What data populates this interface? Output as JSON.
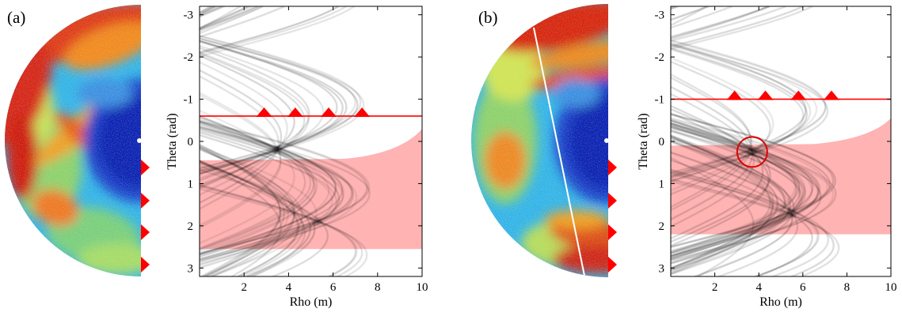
{
  "figure": {
    "panels": [
      {
        "label": "(a)",
        "sonar_image": {
          "colormap": "jet",
          "markers": {
            "count": 4,
            "color": "#ff0000",
            "side": "right"
          },
          "detected_wall_line": false
        },
        "chart_data": {
          "type": "hough-transform",
          "xlabel": "Rho (m)",
          "ylabel": "Theta (rad)",
          "xlim": [
            0,
            10
          ],
          "ylim": [
            -3.2,
            3.2
          ],
          "y_inverted": true,
          "x_ticks": [
            2,
            4,
            6,
            8,
            10
          ],
          "y_ticks": [
            -3,
            -2,
            -1,
            0,
            1,
            2,
            3
          ],
          "horizontal_line": {
            "theta": -0.6,
            "color": "#ff0000"
          },
          "markers": {
            "theta": -0.6,
            "rho": [
              2.9,
              4.3,
              5.8,
              7.3
            ],
            "color": "#ff0000",
            "shape": "triangle"
          },
          "shaded_region": {
            "theta_top_left": 0.45,
            "theta_top_right": -0.3,
            "theta_bottom": 2.55,
            "color": "#ff9999"
          },
          "highlight_circle": null,
          "accumulator_peaks": [
            {
              "rho": 3.5,
              "theta": 0.2
            },
            {
              "rho": 5.3,
              "theta": 1.9
            }
          ]
        }
      },
      {
        "label": "(b)",
        "sonar_image": {
          "colormap": "jet",
          "markers": {
            "count": 4,
            "color": "#ff0000",
            "side": "right"
          },
          "detected_wall_line": true
        },
        "chart_data": {
          "type": "hough-transform",
          "xlabel": "Rho (m)",
          "ylabel": "Theta (rad)",
          "xlim": [
            0,
            10
          ],
          "ylim": [
            -3.2,
            3.2
          ],
          "y_inverted": true,
          "x_ticks": [
            2,
            4,
            6,
            8,
            10
          ],
          "y_ticks": [
            -3,
            -2,
            -1,
            0,
            1,
            2,
            3
          ],
          "horizontal_line": {
            "theta": -1.0,
            "color": "#ff0000"
          },
          "markers": {
            "theta": -1.0,
            "rho": [
              2.9,
              4.3,
              5.8,
              7.3
            ],
            "color": "#ff0000",
            "shape": "triangle"
          },
          "shaded_region": {
            "theta_top_left": 0.1,
            "theta_top_right": -0.55,
            "theta_bottom": 2.2,
            "color": "#ff9999"
          },
          "highlight_circle": {
            "rho": 3.7,
            "theta": 0.25,
            "color": "#dd0000"
          },
          "accumulator_peaks": [
            {
              "rho": 3.7,
              "theta": 0.25
            },
            {
              "rho": 5.5,
              "theta": 1.7
            }
          ]
        }
      }
    ]
  }
}
